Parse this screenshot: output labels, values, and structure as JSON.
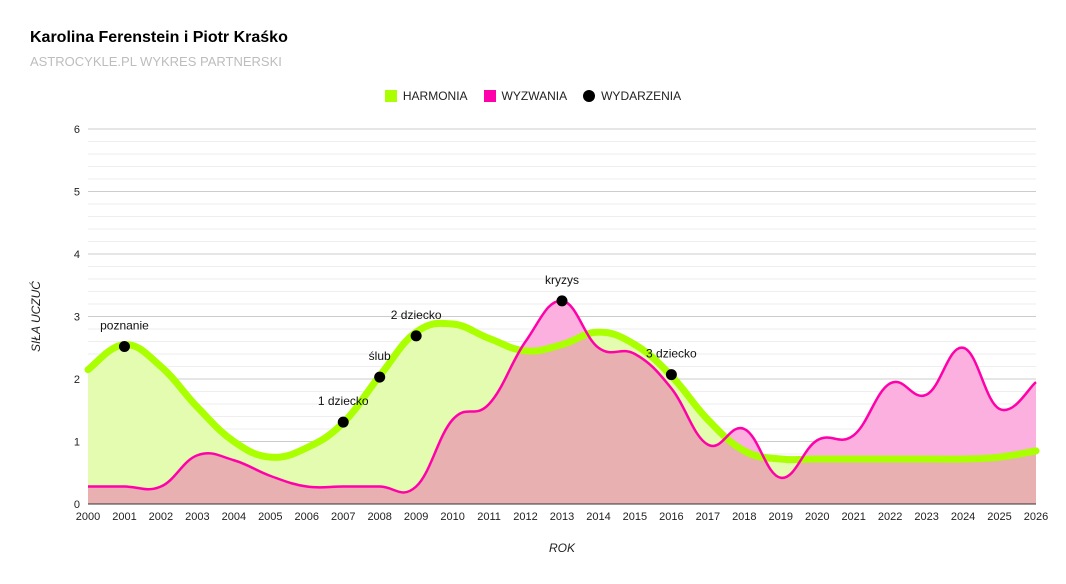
{
  "header": {
    "title": "Karolina Ferenstein i Piotr Kraśko",
    "subtitle": "ASTROCYKLE.PL WYKRES PARTNERSKI"
  },
  "colors": {
    "harmonia_line": "#aaff00",
    "harmonia_fill": "#e4fcb0",
    "wyzwania_line": "#ff00aa",
    "wyzwania_fill": "#fcb0e0",
    "overlap_fill": "#e8b0b0",
    "event_dot": "#000000",
    "grid_major": "#cccccc",
    "grid_minor": "#eeeeee"
  },
  "chart_data": {
    "type": "area",
    "title": "Karolina Ferenstein i Piotr Kraśko",
    "xlabel": "ROK",
    "ylabel": "SIŁA UCZUĆ",
    "xlim": [
      2000,
      2026
    ],
    "ylim": [
      0,
      6
    ],
    "x_ticks": [
      "2000",
      "2001",
      "2002",
      "2003",
      "2004",
      "2005",
      "2006",
      "2007",
      "2008",
      "2009",
      "2010",
      "2011",
      "2012",
      "2013",
      "2014",
      "2015",
      "2016",
      "2017",
      "2018",
      "2019",
      "2020",
      "2021",
      "2022",
      "2023",
      "2024",
      "2025",
      "2026"
    ],
    "y_ticks": [
      "0",
      "1",
      "2",
      "3",
      "4",
      "5",
      "6"
    ],
    "legend_position": "top-center",
    "series": [
      {
        "name": "HARMONIA",
        "x": [
          2000,
          2001,
          2002,
          2003,
          2004,
          2005,
          2006,
          2007,
          2008,
          2009,
          2010,
          2011,
          2012,
          2013,
          2014,
          2015,
          2016,
          2017,
          2018,
          2019,
          2020,
          2021,
          2022,
          2023,
          2024,
          2025,
          2026
        ],
        "values": [
          2.15,
          2.55,
          2.2,
          1.55,
          1.0,
          0.75,
          0.9,
          1.3,
          2.05,
          2.75,
          2.88,
          2.65,
          2.45,
          2.55,
          2.75,
          2.55,
          2.05,
          1.35,
          0.85,
          0.72,
          0.72,
          0.72,
          0.72,
          0.72,
          0.72,
          0.75,
          0.85
        ]
      },
      {
        "name": "WYZWANIA",
        "x": [
          2000,
          2001,
          2002,
          2003,
          2004,
          2005,
          2006,
          2007,
          2008,
          2009,
          2010,
          2011,
          2012,
          2013,
          2014,
          2015,
          2016,
          2017,
          2018,
          2019,
          2020,
          2021,
          2022,
          2023,
          2024,
          2025,
          2026
        ],
        "values": [
          0.28,
          0.28,
          0.28,
          0.78,
          0.7,
          0.45,
          0.28,
          0.28,
          0.28,
          0.28,
          1.35,
          1.6,
          2.6,
          3.25,
          2.5,
          2.4,
          1.85,
          0.95,
          1.2,
          0.42,
          1.02,
          1.1,
          1.93,
          1.75,
          2.5,
          1.52,
          1.95
        ]
      }
    ],
    "events_series_name": "WYDARZENIA",
    "events": [
      {
        "x": 2001.0,
        "y": 2.52,
        "label": "poznanie"
      },
      {
        "x": 2007.0,
        "y": 1.31,
        "label": "1 dziecko"
      },
      {
        "x": 2008.0,
        "y": 2.03,
        "label": "ślub"
      },
      {
        "x": 2009.0,
        "y": 2.69,
        "label": "2 dziecko"
      },
      {
        "x": 2013.0,
        "y": 3.25,
        "label": "kryzys"
      },
      {
        "x": 2016.0,
        "y": 2.07,
        "label": "3 dziecko"
      }
    ]
  }
}
